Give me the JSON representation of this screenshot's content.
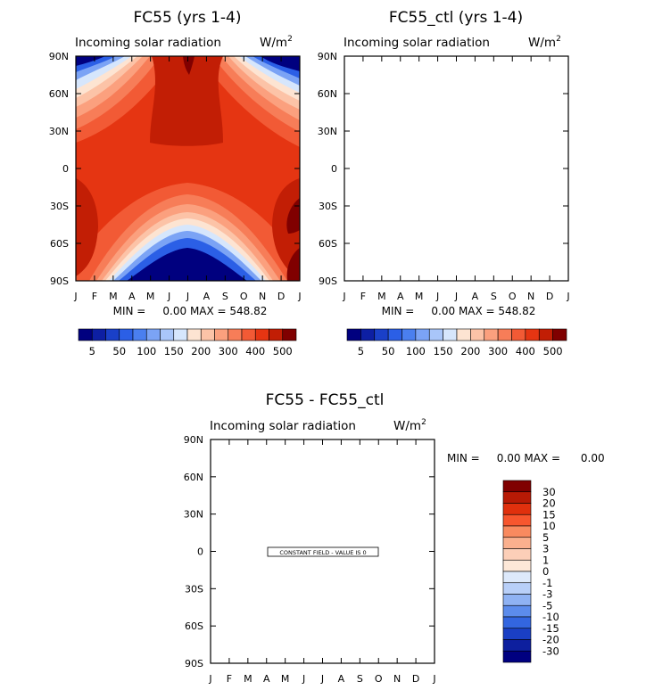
{
  "panels": [
    {
      "title": "FC55 (yrs 1-4)",
      "field": "Incoming solar radiation",
      "unit_base": "W/m",
      "unit_exp": "2",
      "stats": "MIN =     0.00 MAX = 548.82"
    },
    {
      "title": "FC55_ctl (yrs 1-4)",
      "field": "Incoming solar radiation",
      "unit_base": "W/m",
      "unit_exp": "2",
      "stats": "MIN =     0.00 MAX = 548.82"
    },
    {
      "title": "FC55 - FC55_ctl",
      "field": "Incoming solar radiation",
      "unit_base": "W/m",
      "unit_exp": "2",
      "stats": "MIN =     0.00 MAX =      0.00",
      "note": "CONSTANT FIELD - VALUE IS 0"
    }
  ],
  "chart_data": [
    {
      "type": "heatmap",
      "title": "FC55 (yrs 1-4)",
      "subtitle": "Incoming solar radiation",
      "x_ticks": [
        "J",
        "F",
        "M",
        "A",
        "M",
        "J",
        "J",
        "A",
        "S",
        "O",
        "N",
        "D",
        "J"
      ],
      "y_ticks": [
        "90N",
        "60N",
        "30N",
        "0",
        "30S",
        "60S",
        "90S"
      ],
      "min": 0.0,
      "max": 548.82,
      "colorbar_labels": [
        "5",
        "50",
        "100",
        "150",
        "200",
        "300",
        "400",
        "500"
      ],
      "colorbar_colors": [
        "#00007f",
        "#0d1fa3",
        "#1a40c8",
        "#2b5fe6",
        "#4a7fef",
        "#7ba3f5",
        "#a9c6f9",
        "#d6e6fc",
        "#fde4d2",
        "#fcc3a7",
        "#fba07e",
        "#f77d58",
        "#f25a35",
        "#e53512",
        "#c21e05",
        "#800000"
      ]
    },
    {
      "type": "heatmap",
      "title": "FC55_ctl (yrs 1-4)",
      "subtitle": "Incoming solar radiation",
      "x_ticks": [
        "J",
        "F",
        "M",
        "A",
        "M",
        "J",
        "J",
        "A",
        "S",
        "O",
        "N",
        "D",
        "J"
      ],
      "y_ticks": [
        "90N",
        "60N",
        "30N",
        "0",
        "30S",
        "60S",
        "90S"
      ],
      "min": 0.0,
      "max": 548.82,
      "colorbar_labels": [
        "5",
        "50",
        "100",
        "150",
        "200",
        "300",
        "400",
        "500"
      ],
      "colorbar_colors": [
        "#00007f",
        "#0d1fa3",
        "#1a40c8",
        "#2b5fe6",
        "#4a7fef",
        "#7ba3f5",
        "#a9c6f9",
        "#d6e6fc",
        "#fde4d2",
        "#fcc3a7",
        "#fba07e",
        "#f77d58",
        "#f25a35",
        "#e53512",
        "#c21e05",
        "#800000"
      ]
    },
    {
      "type": "heatmap",
      "title": "FC55 - FC55_ctl",
      "subtitle": "Incoming solar radiation",
      "x_ticks": [
        "J",
        "F",
        "M",
        "A",
        "M",
        "J",
        "J",
        "A",
        "S",
        "O",
        "N",
        "D",
        "J"
      ],
      "y_ticks": [
        "90N",
        "60N",
        "30N",
        "0",
        "30S",
        "60S",
        "90S"
      ],
      "min": 0.0,
      "max": 0.0,
      "constant_value": 0,
      "colorbar_labels": [
        "30",
        "20",
        "15",
        "10",
        "5",
        "3",
        "1",
        "0",
        "-1",
        "-3",
        "-5",
        "-10",
        "-15",
        "-20",
        "-30"
      ],
      "colorbar_colors": [
        "#800000",
        "#b81a05",
        "#e0300d",
        "#f7562e",
        "#f98a5f",
        "#fab08e",
        "#fccfb8",
        "#fde8d8",
        "#dde9fb",
        "#b8cff8",
        "#8fb2f3",
        "#5c8cec",
        "#3366e0",
        "#1a3fc4",
        "#0d1f9e",
        "#000080"
      ]
    }
  ]
}
